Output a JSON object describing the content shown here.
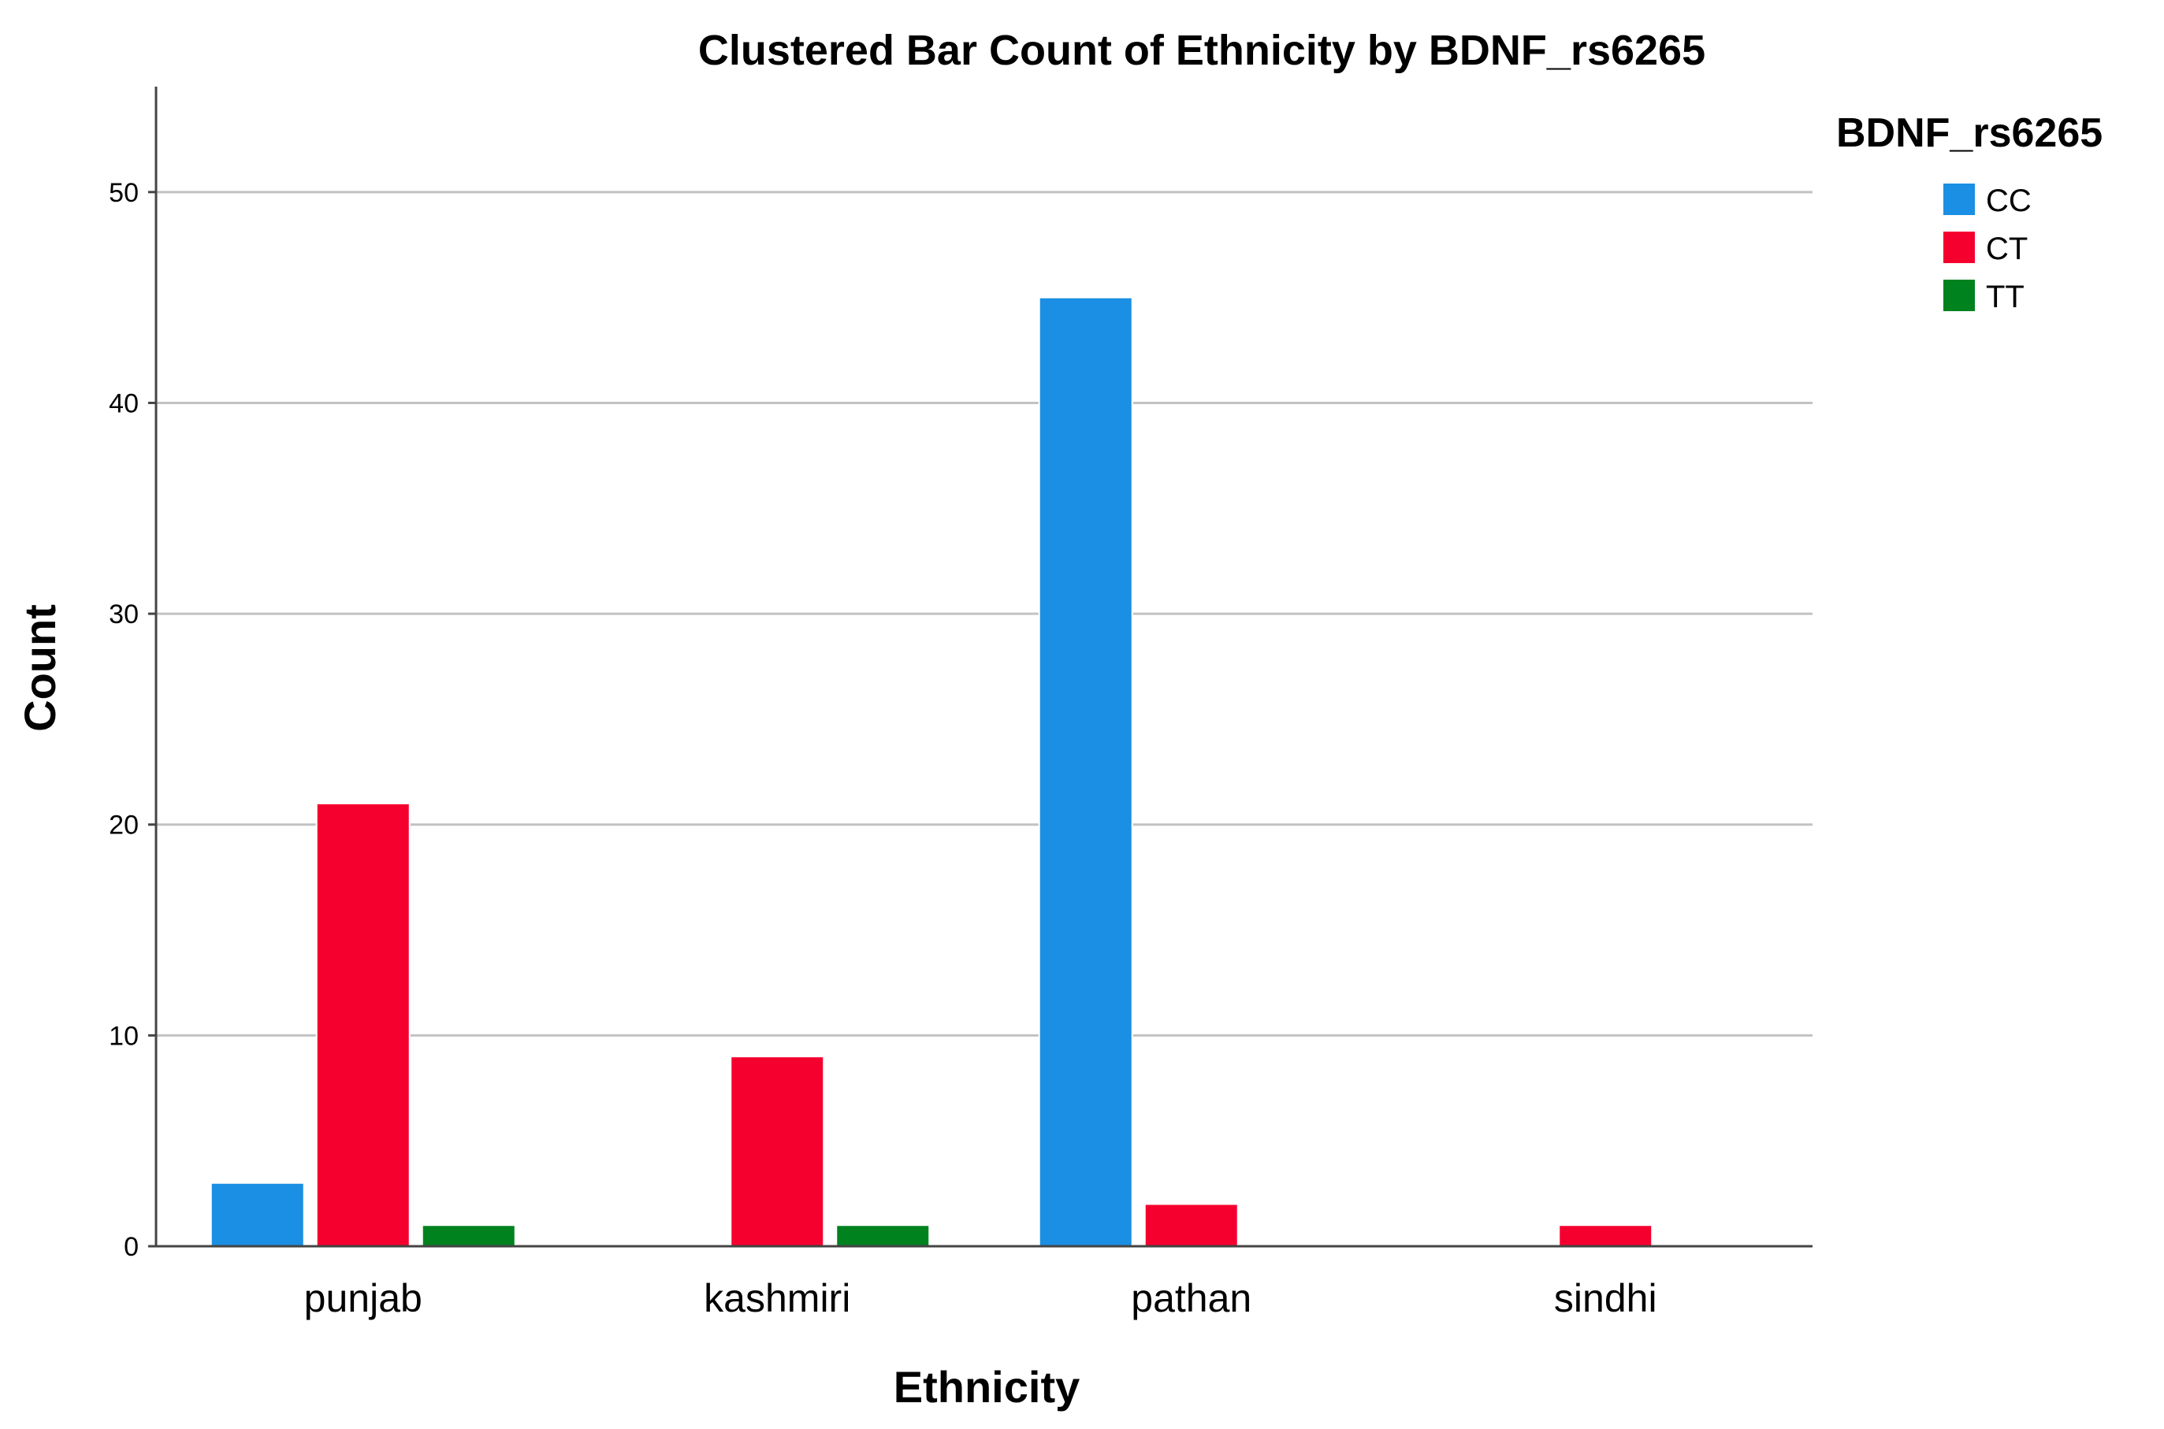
{
  "chart_data": {
    "type": "bar",
    "title": "Clustered Bar Count of Ethnicity by BDNF_rs6265",
    "xlabel": "Ethnicity",
    "ylabel": "Count",
    "ylim": [
      0,
      55
    ],
    "yticks": [
      0,
      10,
      20,
      30,
      40,
      50
    ],
    "categories": [
      "punjab",
      "kashmiri",
      "pathan",
      "sindhi"
    ],
    "legend_title": "BDNF_rs6265",
    "legend_position": "top-right",
    "grid": true,
    "series": [
      {
        "name": "CC",
        "color": "#1a8fe3",
        "values": [
          3,
          0,
          45,
          0
        ]
      },
      {
        "name": "CT",
        "color": "#f5002e",
        "values": [
          21,
          9,
          2,
          1
        ]
      },
      {
        "name": "TT",
        "color": "#00821f",
        "values": [
          1,
          1,
          0,
          0
        ]
      }
    ]
  }
}
